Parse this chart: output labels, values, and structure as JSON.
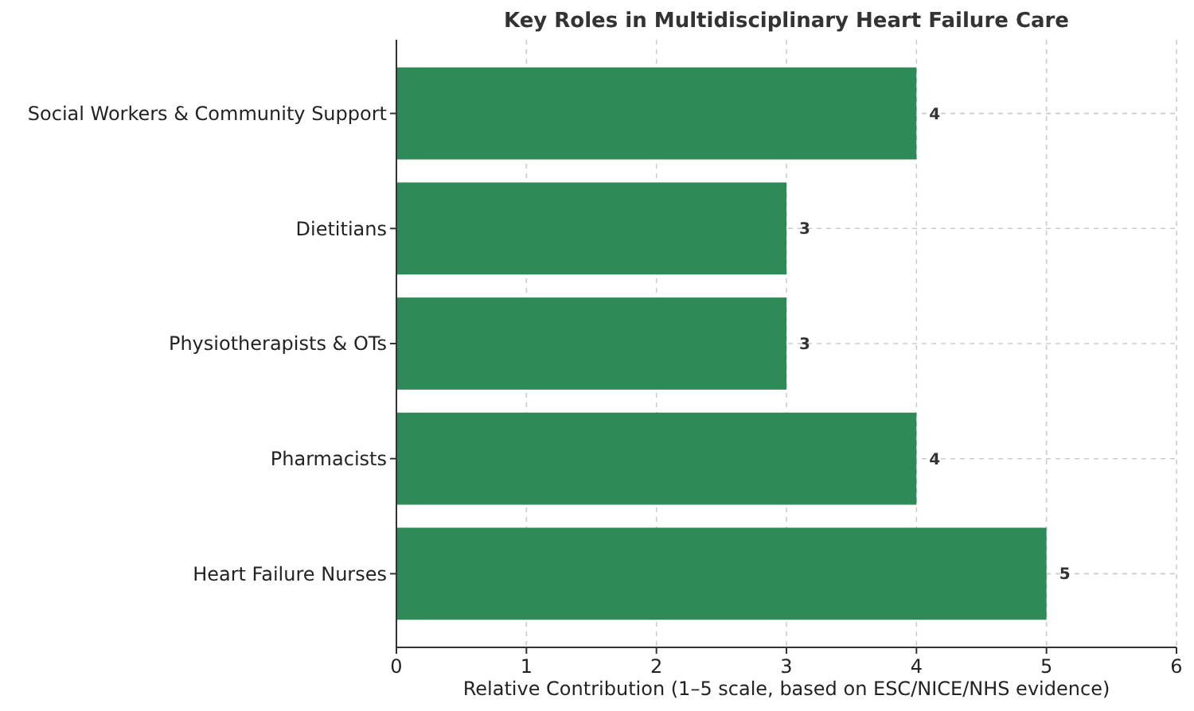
{
  "chart_data": {
    "type": "bar",
    "orientation": "horizontal",
    "title": "Key Roles in Multidisciplinary Heart Failure Care",
    "xlabel": "Relative Contribution (1–5 scale, based on ESC/NICE/NHS evidence)",
    "categories": [
      "Social Workers & Community Support",
      "Dietitians",
      "Physiotherapists & OTs",
      "Pharmacists",
      "Heart Failure Nurses"
    ],
    "values": [
      4,
      3,
      3,
      4,
      5
    ],
    "color": "#2e8b57",
    "xlim": [
      0,
      6
    ],
    "xticks": [
      0,
      1,
      2,
      3,
      4,
      5,
      6
    ],
    "grid": true,
    "data_labels": true
  }
}
